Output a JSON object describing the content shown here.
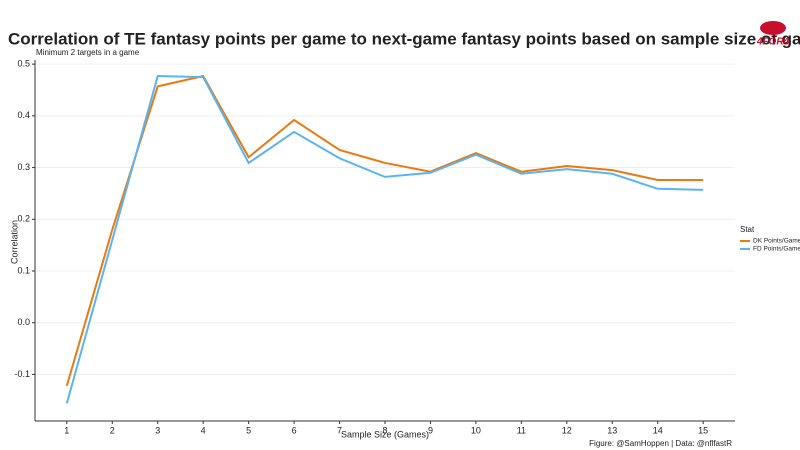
{
  "chart_data": {
    "type": "line",
    "title": "Correlation of TE fantasy points per game to next-game fantasy points based on sample size of games",
    "subtitle": "Minimum 2 targets in a game",
    "x_label": "Sample Size (Games)",
    "y_label": "Correlation",
    "caption": "Figure: @SamHoppen | Data: @nflfastR",
    "logo": "4FOR4",
    "legend_title": "Stat",
    "x": [
      1,
      2,
      3,
      4,
      5,
      6,
      7,
      8,
      9,
      10,
      11,
      12,
      13,
      14,
      15
    ],
    "series": [
      {
        "name": "DK Points/Game",
        "color": "#e87a10",
        "values": [
          -0.122,
          0.18,
          0.457,
          0.477,
          0.32,
          0.392,
          0.334,
          0.309,
          0.292,
          0.328,
          0.292,
          0.303,
          0.295,
          0.276,
          0.276
        ]
      },
      {
        "name": "FD Points/Game",
        "color": "#5ab4f0",
        "values": [
          -0.156,
          0.16,
          0.477,
          0.475,
          0.309,
          0.369,
          0.318,
          0.282,
          0.29,
          0.325,
          0.288,
          0.297,
          0.288,
          0.259,
          0.257
        ]
      }
    ],
    "xlim": [
      0.3,
      15.7
    ],
    "xticks": [
      1,
      2,
      3,
      4,
      5,
      6,
      7,
      8,
      9,
      10,
      11,
      12,
      13,
      14,
      15
    ],
    "ylim": [
      -0.19,
      0.508
    ],
    "yticks": [
      0.5,
      0.4,
      0.3,
      0.2,
      0.1,
      {
        "value": 0,
        "label": "0.0"
      },
      -0.1
    ],
    "grid": true,
    "legend_position": "right"
  }
}
